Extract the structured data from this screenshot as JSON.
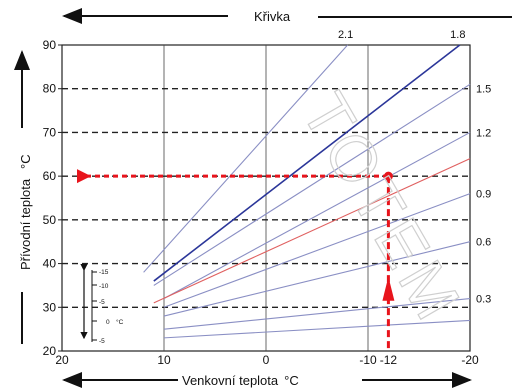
{
  "chart_data": {
    "type": "line",
    "title": "Křivka",
    "xlabel": "Venkovní teplota",
    "xunit": "°C",
    "ylabel": "Přívodní teplota",
    "yunit": "°C",
    "xlim": [
      20,
      -20
    ],
    "ylim": [
      20,
      90
    ],
    "x_ticks": [
      20,
      10,
      0,
      -10,
      -20
    ],
    "x_highlight_tick": -12,
    "y_ticks": [
      20,
      30,
      40,
      50,
      60,
      70,
      80,
      90
    ],
    "y_dashed_grid": [
      30,
      40,
      50,
      60,
      70,
      80
    ],
    "x_grid": [
      10,
      0,
      -10
    ],
    "grid": true,
    "curve_labels": [
      {
        "text": "2.1",
        "curve": 2.1,
        "edge": "top"
      },
      {
        "text": "1.8",
        "curve": 1.8,
        "edge": "top"
      },
      {
        "text": "1.5",
        "y": 80,
        "edge": "right"
      },
      {
        "text": "1.2",
        "y": 70,
        "edge": "right"
      },
      {
        "text": "0.9",
        "y": 56,
        "edge": "right"
      },
      {
        "text": "0.6",
        "y": 45,
        "edge": "right"
      },
      {
        "text": "0.3",
        "y": 32,
        "edge": "right"
      }
    ],
    "series": [
      {
        "slope": 2.1,
        "x": [
          12,
          -8
        ],
        "y": [
          38,
          90
        ],
        "color": "#8a8fc4"
      },
      {
        "slope": 1.8,
        "x": [
          11,
          -19
        ],
        "y": [
          36,
          90
        ],
        "color": "#2b3699"
      },
      {
        "slope": 1.5,
        "x": [
          11,
          -20
        ],
        "y": [
          35,
          81
        ],
        "color": "#8a8fc4"
      },
      {
        "slope": 1.2,
        "x": [
          10,
          -20
        ],
        "y": [
          32,
          70
        ],
        "color": "#8a8fc4"
      },
      {
        "slope": 1.0,
        "x": [
          11,
          -20
        ],
        "y": [
          31,
          64
        ],
        "color": "#e06060"
      },
      {
        "slope": 0.9,
        "x": [
          10,
          -20
        ],
        "y": [
          30,
          56
        ],
        "color": "#8a8fc4"
      },
      {
        "slope": 0.6,
        "x": [
          10,
          -20
        ],
        "y": [
          28,
          45
        ],
        "color": "#8a8fc4"
      },
      {
        "slope": 0.3,
        "x": [
          10,
          -20
        ],
        "y": [
          25,
          32
        ],
        "color": "#8a8fc4"
      },
      {
        "slope": 0.15,
        "x": [
          10,
          -20
        ],
        "y": [
          23,
          27
        ],
        "color": "#8a8fc4"
      }
    ],
    "example": {
      "outdoor": -12,
      "supply": 60,
      "color": "#e8141c"
    },
    "inset_labels": [
      "-15",
      "-10",
      "-5",
      "0",
      "°C",
      "-5"
    ]
  },
  "watermark": "TOTEM"
}
